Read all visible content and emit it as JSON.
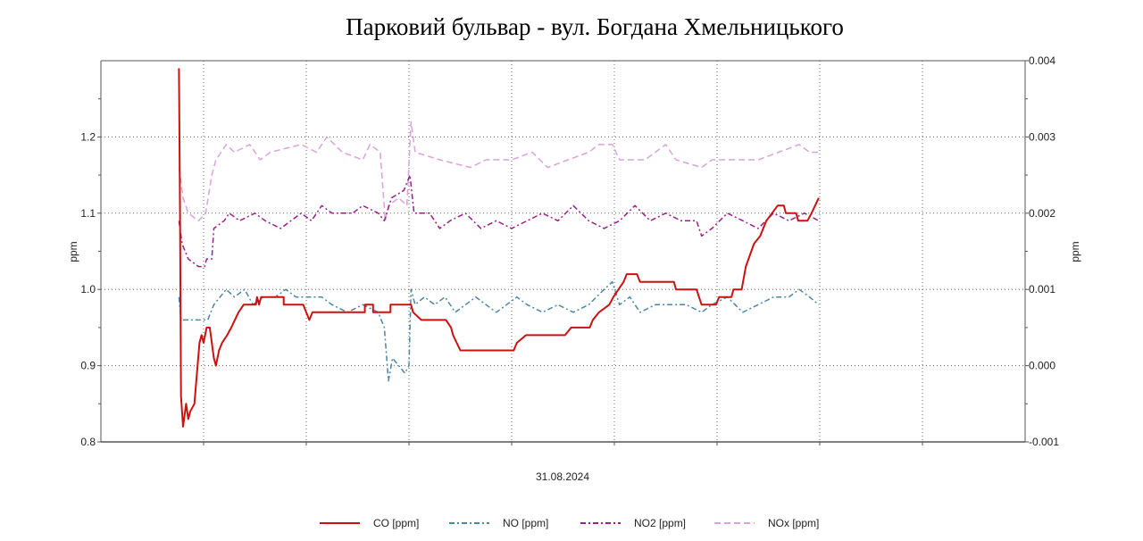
{
  "chart_data": {
    "type": "line",
    "title": "Парковий бульвар - вул. Богдана Хмельницького",
    "xlabel": "31.08.2024",
    "ylabel_left": "ppm",
    "ylabel_right": "ppm",
    "xlim": [
      0,
      9
    ],
    "x_unit": "grid intervals (unlabeled time axis)",
    "ylim_left": [
      0.8,
      1.3
    ],
    "ylim_right": [
      -0.001,
      0.004
    ],
    "yticks_left": [
      "0.8",
      "0.9",
      "1.0",
      "1.1",
      "1.2"
    ],
    "yticks_right": [
      "-0.001",
      "0.000",
      "0.001",
      "0.002",
      "0.003",
      "0.004"
    ],
    "grid": true,
    "legend_placement": "bottom",
    "series": [
      {
        "name": "CO [ppm]",
        "axis": "left",
        "color": "#cc1111",
        "style": "solid",
        "points": [
          [
            0.76,
            1.29
          ],
          [
            0.77,
            1.1
          ],
          [
            0.78,
            0.86
          ],
          [
            0.8,
            0.82
          ],
          [
            0.83,
            0.85
          ],
          [
            0.85,
            0.83
          ],
          [
            0.87,
            0.84
          ],
          [
            0.91,
            0.85
          ],
          [
            0.96,
            0.93
          ],
          [
            0.98,
            0.94
          ],
          [
            1.0,
            0.93
          ],
          [
            1.03,
            0.95
          ],
          [
            1.06,
            0.95
          ],
          [
            1.1,
            0.91
          ],
          [
            1.12,
            0.9
          ],
          [
            1.15,
            0.92
          ],
          [
            1.18,
            0.93
          ],
          [
            1.23,
            0.94
          ],
          [
            1.27,
            0.95
          ],
          [
            1.34,
            0.97
          ],
          [
            1.39,
            0.98
          ],
          [
            1.51,
            0.98
          ],
          [
            1.52,
            0.99
          ],
          [
            1.54,
            0.98
          ],
          [
            1.56,
            0.99
          ],
          [
            1.78,
            0.99
          ],
          [
            1.78,
            0.98
          ],
          [
            1.97,
            0.98
          ],
          [
            2.03,
            0.96
          ],
          [
            2.06,
            0.97
          ],
          [
            2.09,
            0.97
          ],
          [
            2.57,
            0.97
          ],
          [
            2.57,
            0.98
          ],
          [
            2.65,
            0.98
          ],
          [
            2.65,
            0.97
          ],
          [
            2.82,
            0.97
          ],
          [
            2.82,
            0.98
          ],
          [
            3.02,
            0.98
          ],
          [
            3.04,
            0.97
          ],
          [
            3.12,
            0.96
          ],
          [
            3.36,
            0.96
          ],
          [
            3.41,
            0.95
          ],
          [
            3.43,
            0.94
          ],
          [
            3.5,
            0.92
          ],
          [
            4.02,
            0.92
          ],
          [
            4.05,
            0.93
          ],
          [
            4.14,
            0.94
          ],
          [
            4.52,
            0.94
          ],
          [
            4.58,
            0.95
          ],
          [
            4.76,
            0.95
          ],
          [
            4.79,
            0.96
          ],
          [
            4.85,
            0.97
          ],
          [
            4.95,
            0.98
          ],
          [
            4.99,
            0.99
          ],
          [
            5.04,
            1.0
          ],
          [
            5.09,
            1.01
          ],
          [
            5.12,
            1.02
          ],
          [
            5.22,
            1.02
          ],
          [
            5.25,
            1.01
          ],
          [
            5.58,
            1.01
          ],
          [
            5.6,
            1.0
          ],
          [
            5.8,
            1.0
          ],
          [
            5.85,
            0.98
          ],
          [
            5.99,
            0.98
          ],
          [
            6.02,
            0.99
          ],
          [
            6.14,
            0.99
          ],
          [
            6.16,
            1.0
          ],
          [
            6.24,
            1.0
          ],
          [
            6.28,
            1.03
          ],
          [
            6.36,
            1.06
          ],
          [
            6.42,
            1.07
          ],
          [
            6.48,
            1.09
          ],
          [
            6.59,
            1.11
          ],
          [
            6.65,
            1.11
          ],
          [
            6.67,
            1.1
          ],
          [
            6.77,
            1.1
          ],
          [
            6.79,
            1.09
          ],
          [
            6.88,
            1.09
          ],
          [
            6.92,
            1.1
          ],
          [
            6.99,
            1.12
          ]
        ]
      },
      {
        "name": "NO [ppm]",
        "axis": "right",
        "color": "#4a86a6",
        "style": "dash-dot",
        "points": [
          [
            0.76,
            0.0009
          ],
          [
            0.78,
            0.0006
          ],
          [
            1.04,
            0.0006
          ],
          [
            1.1,
            0.0008
          ],
          [
            1.16,
            0.0009
          ],
          [
            1.22,
            0.001
          ],
          [
            1.3,
            0.0009
          ],
          [
            1.4,
            0.001
          ],
          [
            1.48,
            0.0008
          ],
          [
            1.58,
            0.0009
          ],
          [
            1.7,
            0.0009
          ],
          [
            1.8,
            0.001
          ],
          [
            1.9,
            0.0009
          ],
          [
            2.15,
            0.0009
          ],
          [
            2.25,
            0.0008
          ],
          [
            2.4,
            0.0007
          ],
          [
            2.55,
            0.0008
          ],
          [
            2.7,
            0.0007
          ],
          [
            2.76,
            0.0005
          ],
          [
            2.8,
            -0.0002
          ],
          [
            2.84,
            0.0001
          ],
          [
            2.9,
            0.0
          ],
          [
            2.96,
            -0.0001
          ],
          [
            3.0,
            0.0
          ],
          [
            3.02,
            0.001
          ],
          [
            3.06,
            0.0008
          ],
          [
            3.15,
            0.0009
          ],
          [
            3.25,
            0.0008
          ],
          [
            3.35,
            0.0009
          ],
          [
            3.45,
            0.0007
          ],
          [
            3.55,
            0.0008
          ],
          [
            3.65,
            0.0009
          ],
          [
            3.75,
            0.0008
          ],
          [
            3.85,
            0.0007
          ],
          [
            3.95,
            0.0008
          ],
          [
            4.05,
            0.0009
          ],
          [
            4.15,
            0.0008
          ],
          [
            4.3,
            0.0007
          ],
          [
            4.45,
            0.0008
          ],
          [
            4.6,
            0.0007
          ],
          [
            4.75,
            0.0008
          ],
          [
            4.9,
            0.001
          ],
          [
            4.98,
            0.0011
          ],
          [
            5.05,
            0.0008
          ],
          [
            5.15,
            0.0009
          ],
          [
            5.25,
            0.0007
          ],
          [
            5.4,
            0.0008
          ],
          [
            5.55,
            0.0008
          ],
          [
            5.7,
            0.0008
          ],
          [
            5.85,
            0.0007
          ],
          [
            5.95,
            0.0008
          ],
          [
            6.1,
            0.0009
          ],
          [
            6.25,
            0.0007
          ],
          [
            6.4,
            0.0008
          ],
          [
            6.55,
            0.0009
          ],
          [
            6.7,
            0.0009
          ],
          [
            6.8,
            0.001
          ],
          [
            6.9,
            0.0009
          ],
          [
            6.99,
            0.0008
          ]
        ]
      },
      {
        "name": "NO2 [ppm]",
        "axis": "right",
        "color": "#9a1f8a",
        "style": "dash-dot",
        "points": [
          [
            0.76,
            0.0019
          ],
          [
            0.79,
            0.0016
          ],
          [
            0.85,
            0.0014
          ],
          [
            0.95,
            0.0013
          ],
          [
            1.01,
            0.0013
          ],
          [
            1.03,
            0.0014
          ],
          [
            1.08,
            0.0014
          ],
          [
            1.1,
            0.0018
          ],
          [
            1.2,
            0.0019
          ],
          [
            1.25,
            0.002
          ],
          [
            1.35,
            0.0019
          ],
          [
            1.5,
            0.002
          ],
          [
            1.6,
            0.0019
          ],
          [
            1.75,
            0.0018
          ],
          [
            1.85,
            0.0019
          ],
          [
            1.95,
            0.002
          ],
          [
            2.05,
            0.0019
          ],
          [
            2.15,
            0.0021
          ],
          [
            2.25,
            0.002
          ],
          [
            2.45,
            0.002
          ],
          [
            2.55,
            0.0021
          ],
          [
            2.7,
            0.002
          ],
          [
            2.76,
            0.0019
          ],
          [
            2.83,
            0.0022
          ],
          [
            2.95,
            0.0023
          ],
          [
            3.01,
            0.0025
          ],
          [
            3.05,
            0.002
          ],
          [
            3.2,
            0.002
          ],
          [
            3.3,
            0.0018
          ],
          [
            3.4,
            0.0019
          ],
          [
            3.55,
            0.002
          ],
          [
            3.7,
            0.0018
          ],
          [
            3.85,
            0.0019
          ],
          [
            4.0,
            0.0018
          ],
          [
            4.15,
            0.0019
          ],
          [
            4.3,
            0.002
          ],
          [
            4.45,
            0.0019
          ],
          [
            4.6,
            0.0021
          ],
          [
            4.75,
            0.0019
          ],
          [
            4.9,
            0.0018
          ],
          [
            5.05,
            0.0019
          ],
          [
            5.2,
            0.0021
          ],
          [
            5.35,
            0.0019
          ],
          [
            5.5,
            0.002
          ],
          [
            5.65,
            0.0019
          ],
          [
            5.8,
            0.0019
          ],
          [
            5.85,
            0.0017
          ],
          [
            5.95,
            0.0018
          ],
          [
            6.1,
            0.002
          ],
          [
            6.25,
            0.0019
          ],
          [
            6.4,
            0.0018
          ],
          [
            6.55,
            0.002
          ],
          [
            6.7,
            0.0019
          ],
          [
            6.85,
            0.002
          ],
          [
            6.99,
            0.0019
          ]
        ]
      },
      {
        "name": "NOx [ppm]",
        "axis": "right",
        "color": "#d9a3d9",
        "style": "dashed",
        "points": [
          [
            0.76,
            0.0026
          ],
          [
            0.8,
            0.0022
          ],
          [
            0.85,
            0.002
          ],
          [
            0.95,
            0.0019
          ],
          [
            1.02,
            0.002
          ],
          [
            1.08,
            0.0025
          ],
          [
            1.12,
            0.0027
          ],
          [
            1.17,
            0.0028
          ],
          [
            1.22,
            0.0029
          ],
          [
            1.3,
            0.0028
          ],
          [
            1.45,
            0.0029
          ],
          [
            1.55,
            0.0027
          ],
          [
            1.65,
            0.0028
          ],
          [
            1.95,
            0.0029
          ],
          [
            2.1,
            0.0028
          ],
          [
            2.2,
            0.003
          ],
          [
            2.35,
            0.0028
          ],
          [
            2.55,
            0.0027
          ],
          [
            2.62,
            0.0029
          ],
          [
            2.72,
            0.0028
          ],
          [
            2.77,
            0.0019
          ],
          [
            2.8,
            0.0021
          ],
          [
            2.9,
            0.0022
          ],
          [
            2.98,
            0.0021
          ],
          [
            3.02,
            0.0032
          ],
          [
            3.06,
            0.0028
          ],
          [
            3.3,
            0.0027
          ],
          [
            3.6,
            0.0026
          ],
          [
            3.75,
            0.0027
          ],
          [
            4.0,
            0.0027
          ],
          [
            4.2,
            0.0028
          ],
          [
            4.35,
            0.0026
          ],
          [
            4.55,
            0.0027
          ],
          [
            4.75,
            0.0028
          ],
          [
            4.85,
            0.0029
          ],
          [
            4.98,
            0.0029
          ],
          [
            5.05,
            0.0027
          ],
          [
            5.3,
            0.0027
          ],
          [
            5.5,
            0.0029
          ],
          [
            5.6,
            0.0027
          ],
          [
            5.85,
            0.0026
          ],
          [
            5.95,
            0.0027
          ],
          [
            6.2,
            0.0027
          ],
          [
            6.4,
            0.0027
          ],
          [
            6.6,
            0.0028
          ],
          [
            6.8,
            0.0029
          ],
          [
            6.9,
            0.0028
          ],
          [
            6.99,
            0.0028
          ]
        ]
      }
    ]
  }
}
